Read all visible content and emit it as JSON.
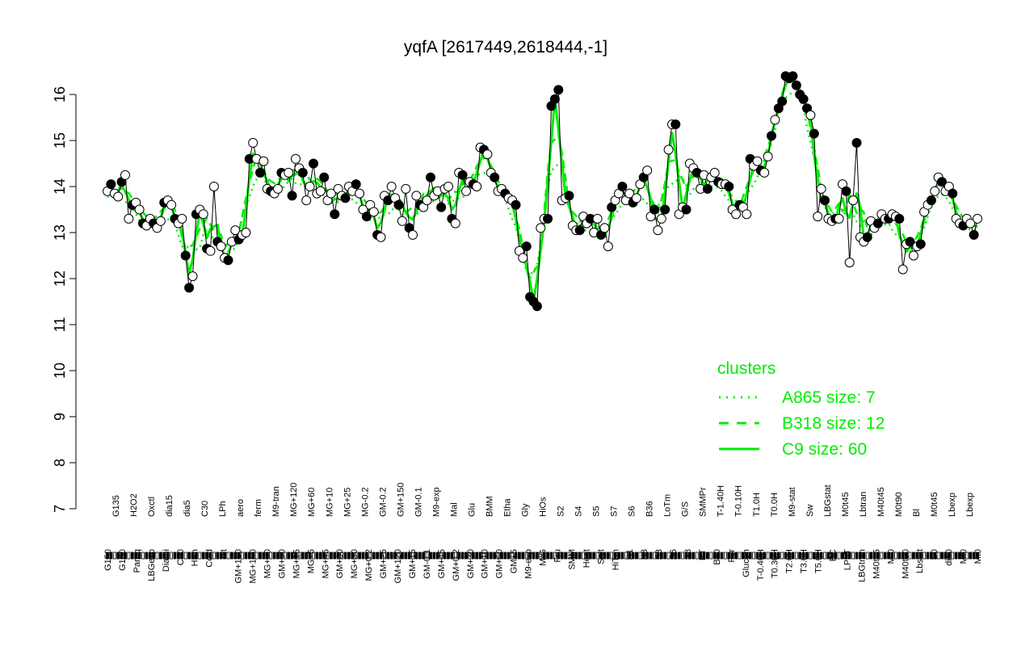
{
  "chart_data": {
    "type": "line",
    "title": "yqfA [2617449,2618444,-1]",
    "xlabel": "",
    "ylabel": "",
    "ylim": [
      7,
      16.5
    ],
    "yticks": [
      7,
      8,
      9,
      10,
      11,
      12,
      13,
      14,
      15,
      16
    ],
    "x_tick_labels_bottom": [
      "G150",
      "G180",
      "Paraq",
      "LBGexp",
      "Diami",
      "C90",
      "HPh",
      "Cold",
      "nit",
      "GM+150",
      "MG+150",
      "MG+90",
      "GM+90",
      "MG+15",
      "MG+5",
      "MG+45",
      "GM+60",
      "MG+30",
      "MG+0.2",
      "GM+25",
      "GM+120",
      "GM+15",
      "GM-0.1",
      "GM+45",
      "GM+0.2",
      "GM+30",
      "GM+10",
      "GM+60",
      "GM+5",
      "M9-exp",
      "M/G",
      "Fru",
      "SMM",
      "Heat",
      "Salt",
      "HiTm",
      "S1",
      "S3",
      "S3",
      "S6",
      "S8",
      "BT",
      "B60",
      "Pyr",
      "Glucon",
      "T-0.40H",
      "T0.30H",
      "T2.0H",
      "T3.0H",
      "T5.0H",
      "BC",
      "LPhT",
      "LBGtran",
      "M40t45",
      "Mt0",
      "M40t90",
      "Lbstat",
      "S0",
      "dia0",
      "Mt0",
      "Mt0"
    ],
    "x_tick_labels_top": [
      "G135",
      "H2O2",
      "Oxctl",
      "dia15",
      "dia5",
      "C30",
      "LPh",
      "aero",
      "ferm",
      "M9-tran",
      "MG+120",
      "MG+60",
      "MG+10",
      "MG+25",
      "MG-0.2",
      "GM-0.2",
      "GM+150",
      "GM-0.1",
      "M9-exp",
      "Mal",
      "Glu",
      "BMM",
      "Etha",
      "Gly",
      "HiOs",
      "S2",
      "S4",
      "S5",
      "S7",
      "S6",
      "B36",
      "LoTm",
      "G/S",
      "SMMPr",
      "T-1.40H",
      "T-0.10H",
      "T1.0H",
      "T0.0H",
      "M9-stat",
      "Sw",
      "LBGstat",
      "M0t45",
      "Lbtran",
      "M40t45",
      "M0t90",
      "Bl",
      "M0t45",
      "Lbexp",
      "Lbexp"
    ],
    "series": [
      {
        "values": [
          13.9,
          14.05,
          13.85,
          13.78,
          14.1,
          14.25,
          13.3,
          13.6,
          13.65,
          13.5,
          13.2,
          13.15,
          13.3,
          13.2,
          13.1,
          13.25,
          13.65,
          13.7,
          13.6,
          13.3,
          13.2,
          13.3,
          12.5,
          11.8,
          12.05,
          13.4,
          13.5,
          13.4,
          12.65,
          12.6,
          14.0,
          12.8,
          12.7,
          12.45,
          12.4,
          12.8,
          13.05,
          12.85,
          12.95,
          13.0,
          14.6,
          14.95,
          14.6,
          14.3,
          14.55,
          13.95,
          13.9,
          13.85,
          13.95,
          14.3,
          14.25,
          14.3,
          13.8,
          14.6,
          14.4,
          14.3,
          13.7,
          14.0,
          14.5,
          13.85,
          13.9,
          14.2,
          13.7,
          13.85,
          13.4,
          13.95,
          13.8,
          13.75,
          14.0,
          13.9,
          14.05,
          13.85,
          13.5,
          13.35,
          13.6,
          13.45,
          12.95,
          12.9,
          13.8,
          13.7,
          14.0,
          13.75,
          13.6,
          13.25,
          13.95,
          13.1,
          12.95,
          13.8,
          13.6,
          13.55,
          13.7,
          14.2,
          13.8,
          13.9,
          13.55,
          13.95,
          14.0,
          13.3,
          13.2,
          14.3,
          14.25,
          13.9,
          14.1,
          14.05,
          14.0,
          14.85,
          14.8,
          14.7,
          14.3,
          14.2,
          13.9,
          13.95,
          13.85,
          13.75,
          13.7,
          13.6,
          12.6,
          12.45,
          12.7,
          11.6,
          11.5,
          11.4,
          13.1,
          13.3,
          13.3,
          15.75,
          15.9,
          16.1,
          13.7,
          13.75,
          13.8,
          13.15,
          13.05,
          13.05,
          13.35,
          13.2,
          13.3,
          13.0,
          13.3,
          12.95,
          13.1,
          12.7,
          13.55,
          13.7,
          13.85,
          14.0,
          13.7,
          13.85,
          13.65,
          13.75,
          14.05,
          14.2,
          14.35,
          13.35,
          13.5,
          13.05,
          13.3,
          13.5,
          14.8,
          15.35,
          15.35,
          13.4,
          13.55,
          13.5,
          14.5,
          14.4,
          14.3,
          13.95,
          14.25,
          13.95,
          14.2,
          14.3,
          14.1,
          14.05,
          14.05,
          14.0,
          13.5,
          13.4,
          13.6,
          13.55,
          13.4,
          14.6,
          14.45,
          14.55,
          14.35,
          14.3,
          14.65,
          15.1,
          15.45,
          15.7,
          15.85,
          16.4,
          16.35,
          16.4,
          16.2,
          16.0,
          15.9,
          15.7,
          15.55,
          15.15,
          13.35,
          13.95,
          13.7,
          13.3,
          13.25,
          13.3,
          13.3,
          14.05,
          13.9,
          12.35,
          13.7,
          14.95,
          12.9,
          12.8,
          12.9,
          13.25,
          13.1,
          13.2,
          13.4,
          13.3,
          13.3,
          13.4,
          13.35,
          13.3,
          12.2,
          12.75,
          12.8,
          12.5,
          12.7,
          12.75,
          13.45,
          13.6,
          13.7,
          13.9,
          14.2,
          14.1,
          13.9,
          14.0,
          13.85,
          13.3,
          13.2,
          13.15,
          13.3,
          13.2,
          12.95,
          13.3
        ]
      }
    ],
    "legend": {
      "title": "clusters",
      "placement": "bottom-right",
      "entries": [
        {
          "label": "A865 size: 7",
          "style": "dotted"
        },
        {
          "label": "B318 size: 12",
          "style": "dashed"
        },
        {
          "label": "C9 size: 60",
          "style": "solid"
        }
      ]
    },
    "colors": {
      "cluster_line": "#00ee00",
      "points": "#000000"
    }
  }
}
